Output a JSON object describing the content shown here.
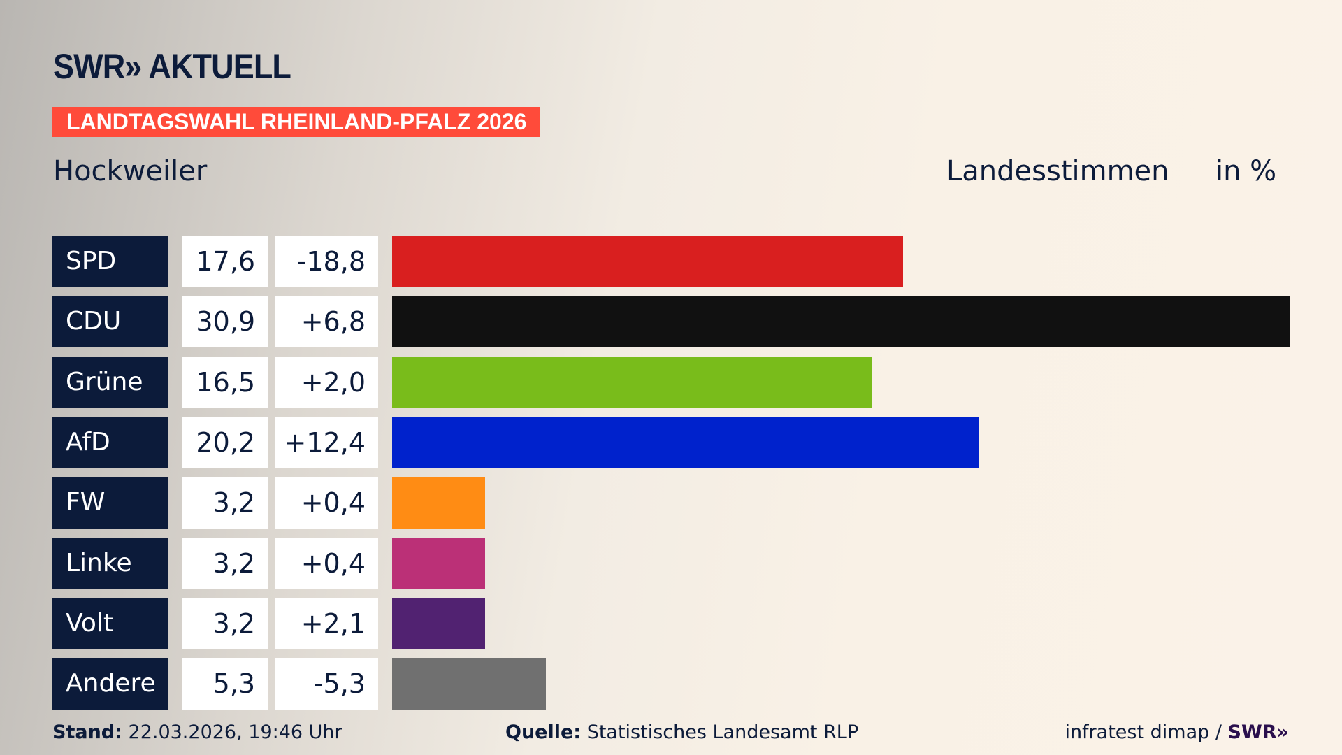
{
  "logo": "SWR» AKTUELL",
  "banner": "LANDTAGSWAHL RHEINLAND-PFALZ 2026",
  "region": "Hockweiler",
  "vote_type": "Landesstimmen",
  "unit": "in %",
  "chart_data": {
    "type": "bar",
    "orientation": "horizontal",
    "categories": [
      "SPD",
      "CDU",
      "Grüne",
      "AfD",
      "FW",
      "Linke",
      "Volt",
      "Andere"
    ],
    "values": [
      17.6,
      30.9,
      16.5,
      20.2,
      3.2,
      3.2,
      3.2,
      5.3
    ],
    "value_labels": [
      "17,6",
      "30,9",
      "16,5",
      "20,2",
      "3,2",
      "3,2",
      "3,2",
      "5,3"
    ],
    "diff_labels": [
      "-18,8",
      "+6,8",
      "+2,0",
      "+12,4",
      "+0,4",
      "+0,4",
      "+2,1",
      "-5,3"
    ],
    "colors": [
      "#d91f1f",
      "#111111",
      "#79bc1b",
      "#0022cc",
      "#ff8c14",
      "#bb3077",
      "#512271",
      "#707070"
    ]
  },
  "footer": {
    "stand_label": "Stand:",
    "stand_value": "22.03.2026, 19:46 Uhr",
    "source_label": "Quelle:",
    "source_value": "Statistisches Landesamt RLP",
    "credit": "infratest dimap / ",
    "credit_logo": "SWR»"
  }
}
